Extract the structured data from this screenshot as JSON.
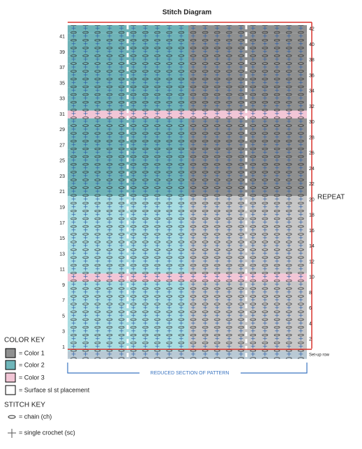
{
  "title": "Stitch Diagram",
  "left_row_numbers": [
    1,
    3,
    5,
    7,
    9,
    11,
    13,
    15,
    17,
    19,
    21,
    23,
    25,
    27,
    29,
    31,
    33,
    35,
    37,
    39,
    41
  ],
  "right_row_numbers": [
    2,
    4,
    6,
    8,
    10,
    12,
    14,
    16,
    18,
    20,
    22,
    24,
    26,
    28,
    30,
    32,
    34,
    36,
    38,
    40,
    42
  ],
  "repeat_label": "REPEAT",
  "setup_label": "Set-up row",
  "section_label": "REDUCED SECTION OF PATTERN",
  "color_key": {
    "title": "COLOR KEY",
    "items": [
      "= Color 1",
      "= Color 2",
      "= Color 3",
      "= Surface sl st placement"
    ]
  },
  "stitch_key": {
    "title": "STITCH KEY",
    "items": [
      "= chain (ch)",
      "= single crochet (sc)"
    ]
  }
}
